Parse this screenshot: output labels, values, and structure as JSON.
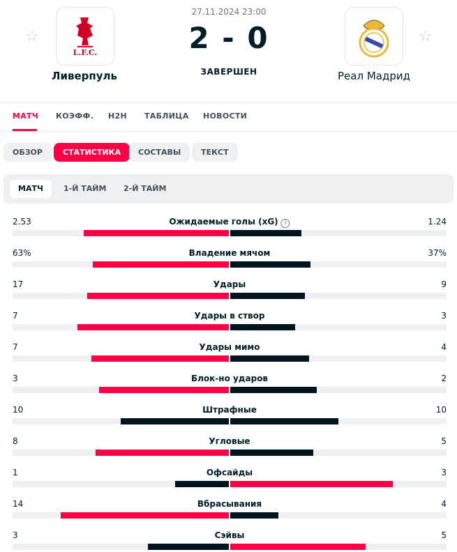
{
  "header": {
    "datetime": "27.11.2024 23:00",
    "score": "2 - 0",
    "status": "ЗАВЕРШЕН",
    "home_team": {
      "name": "Ливерпуль",
      "logo_text": "L.F.C."
    },
    "away_team": {
      "name": "Реал Мадрид"
    }
  },
  "tabs": [
    "МАТЧ",
    "КОЭФФ.",
    "H2H",
    "ТАБЛИЦА",
    "НОВОСТИ"
  ],
  "subtabs": [
    "ОБЗОР",
    "СТАТИСТИКА",
    "СОСТАВЫ",
    "ТЕКСТ"
  ],
  "periods": [
    "МАТЧ",
    "1-Й ТАЙМ",
    "2-Й ТАЙМ"
  ],
  "stats": [
    {
      "name": "Ожидаемые голы (xG)",
      "home": 2.53,
      "away": 1.24
    },
    {
      "name": "Владение мячом",
      "home": {
        "value": 63,
        "label": "63%"
      },
      "away": {
        "value": 37,
        "label": "37%"
      }
    },
    {
      "name": "Удары",
      "home": 17,
      "away": 9
    },
    {
      "name": "Удары в створ",
      "home": 7,
      "away": 3
    },
    {
      "name": "Удары мимо",
      "home": 7,
      "away": 4
    },
    {
      "name": "Блок-но ударов",
      "home": 3,
      "away": 2
    },
    {
      "name": "Штрафные",
      "home": 10,
      "away": 10
    },
    {
      "name": "Угловые",
      "home": 8,
      "away": 5
    },
    {
      "name": "Офсайды",
      "home": 1,
      "away": 3
    },
    {
      "name": "Вбрасывания",
      "home": 14,
      "away": 4
    },
    {
      "name": "Сэйвы",
      "home": 3,
      "away": 5
    }
  ]
}
